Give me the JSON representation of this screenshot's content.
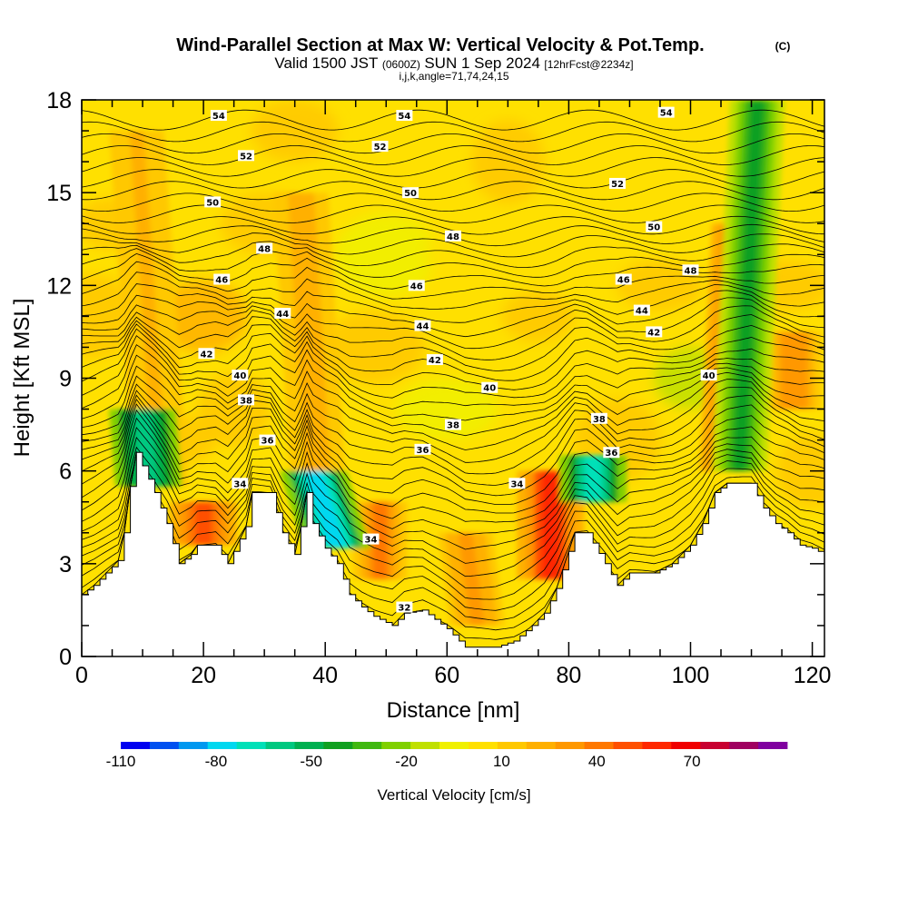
{
  "chart_data": {
    "type": "heatmap",
    "title_main": "Wind-Parallel Section at Max W: Vertical Velocity & Pot.Temp.",
    "title_mark": "(C)",
    "subtitle_a": "Valid 1500 JST",
    "subtitle_b": "(0600Z)",
    "subtitle_c": "SUN 1 Sep 2024",
    "subtitle_d": "[12hrFcst@2234z]",
    "subtitle2": "i,j,k,angle=71,74,24,15",
    "xlabel": "Distance [nm]",
    "ylabel": "Height [Kft MSL]",
    "xlim": [
      0,
      122
    ],
    "ylim": [
      0,
      18
    ],
    "x_ticks": [
      "0",
      "20",
      "40",
      "60",
      "80",
      "100",
      "120"
    ],
    "x_tick_values": [
      0,
      20,
      40,
      60,
      80,
      100,
      120
    ],
    "y_ticks": [
      "0",
      "3",
      "6",
      "9",
      "12",
      "15",
      "18"
    ],
    "y_tick_values": [
      0,
      3,
      6,
      9,
      12,
      15,
      18
    ],
    "colorbar": {
      "label": "Vertical Velocity [cm/s]",
      "tick_labels": [
        "-110",
        "-80",
        "-50",
        "-20",
        "10",
        "40",
        "70"
      ],
      "tick_values": [
        -110,
        -80,
        -50,
        -20,
        10,
        40,
        70
      ],
      "range": [
        -110,
        100
      ],
      "colors": [
        "#0000f0",
        "#0050f0",
        "#0098f0",
        "#00d8f0",
        "#00e0b8",
        "#00c880",
        "#00b050",
        "#10a020",
        "#40b810",
        "#80d000",
        "#c0e000",
        "#f0f000",
        "#ffe000",
        "#ffc800",
        "#ffb000",
        "#ff9800",
        "#ff7800",
        "#ff5000",
        "#ff2800",
        "#f00000",
        "#c80030",
        "#a00060",
        "#8000a0"
      ]
    },
    "terrain": [
      {
        "x": 0,
        "h": 2.0
      },
      {
        "x": 2,
        "h": 2.3
      },
      {
        "x": 4,
        "h": 2.7
      },
      {
        "x": 6,
        "h": 3.1
      },
      {
        "x": 7,
        "h": 4.0
      },
      {
        "x": 8,
        "h": 5.5
      },
      {
        "x": 9,
        "h": 6.6
      },
      {
        "x": 12,
        "h": 5.3
      },
      {
        "x": 14,
        "h": 4.3
      },
      {
        "x": 16,
        "h": 3.0
      },
      {
        "x": 18,
        "h": 3.3
      },
      {
        "x": 19,
        "h": 3.6
      },
      {
        "x": 22,
        "h": 3.6
      },
      {
        "x": 24,
        "h": 3.0
      },
      {
        "x": 27,
        "h": 4.2
      },
      {
        "x": 28,
        "h": 5.3
      },
      {
        "x": 31,
        "h": 5.3
      },
      {
        "x": 33,
        "h": 4.0
      },
      {
        "x": 35,
        "h": 3.3
      },
      {
        "x": 36,
        "h": 4.2
      },
      {
        "x": 37,
        "h": 5.3
      },
      {
        "x": 38,
        "h": 4.3
      },
      {
        "x": 40,
        "h": 3.5
      },
      {
        "x": 42,
        "h": 3.0
      },
      {
        "x": 44,
        "h": 2.0
      },
      {
        "x": 46,
        "h": 1.6
      },
      {
        "x": 48,
        "h": 1.3
      },
      {
        "x": 51,
        "h": 1.0
      },
      {
        "x": 53,
        "h": 1.4
      },
      {
        "x": 56,
        "h": 1.5
      },
      {
        "x": 60,
        "h": 0.9
      },
      {
        "x": 63,
        "h": 0.3
      },
      {
        "x": 68,
        "h": 0.3
      },
      {
        "x": 71,
        "h": 0.5
      },
      {
        "x": 74,
        "h": 1.0
      },
      {
        "x": 76,
        "h": 1.4
      },
      {
        "x": 78,
        "h": 2.2
      },
      {
        "x": 80,
        "h": 3.4
      },
      {
        "x": 81,
        "h": 4.0
      },
      {
        "x": 83,
        "h": 4.0
      },
      {
        "x": 86,
        "h": 3.0
      },
      {
        "x": 88,
        "h": 2.3
      },
      {
        "x": 90,
        "h": 2.7
      },
      {
        "x": 94,
        "h": 2.7
      },
      {
        "x": 97,
        "h": 3.0
      },
      {
        "x": 100,
        "h": 3.6
      },
      {
        "x": 102,
        "h": 4.3
      },
      {
        "x": 104,
        "h": 5.3
      },
      {
        "x": 106,
        "h": 5.6
      },
      {
        "x": 110,
        "h": 5.6
      },
      {
        "x": 112,
        "h": 4.8
      },
      {
        "x": 114,
        "h": 4.3
      },
      {
        "x": 116,
        "h": 4.0
      },
      {
        "x": 118,
        "h": 3.6
      },
      {
        "x": 120,
        "h": 3.5
      },
      {
        "x": 122,
        "h": 3.3
      }
    ],
    "updraft_bands": [
      {
        "x_bottom": 13,
        "h_bottom": 5.5,
        "x_top": 9,
        "h_top": 17.0,
        "w": 18
      },
      {
        "x_bottom": 20,
        "h_bottom": 3.6,
        "x_top": 20,
        "h_top": 5.0,
        "w": 50
      },
      {
        "x_bottom": 39,
        "h_bottom": 5.0,
        "x_top": 36,
        "h_top": 15.0,
        "w": 22
      },
      {
        "x_bottom": 49,
        "h_bottom": 2.5,
        "x_top": 49,
        "h_top": 5.0,
        "w": 40
      },
      {
        "x_bottom": 65,
        "h_bottom": 1.0,
        "x_top": 63,
        "h_top": 4.0,
        "w": 30
      },
      {
        "x_bottom": 77,
        "h_bottom": 2.5,
        "x_top": 77,
        "h_top": 6.0,
        "w": 55
      },
      {
        "x_bottom": 106,
        "h_bottom": 6.0,
        "x_top": 108,
        "h_top": 14.0,
        "w": 45
      },
      {
        "x_bottom": 117,
        "h_bottom": 8.0,
        "x_top": 117,
        "h_top": 10.5,
        "w": 35
      }
    ],
    "downdraft_bands": [
      {
        "x_bottom": 11,
        "h_bottom": 5.5,
        "x_top": 10,
        "h_top": 8.0,
        "w": -60
      },
      {
        "x_bottom": 42,
        "h_bottom": 3.5,
        "x_top": 38,
        "h_top": 6.0,
        "w": -80
      },
      {
        "x_bottom": 84,
        "h_bottom": 5.0,
        "x_top": 84,
        "h_top": 6.5,
        "w": -70
      },
      {
        "x_bottom": 108,
        "h_bottom": 6.0,
        "x_top": 111,
        "h_top": 18.0,
        "w": -40
      }
    ],
    "contour_labels": [
      {
        "text": "54",
        "x": 22.5,
        "h": 17.5
      },
      {
        "text": "54",
        "x": 53,
        "h": 17.5
      },
      {
        "text": "54",
        "x": 96,
        "h": 17.6
      },
      {
        "text": "52",
        "x": 27,
        "h": 16.2
      },
      {
        "text": "52",
        "x": 49,
        "h": 16.5
      },
      {
        "text": "52",
        "x": 88,
        "h": 15.3
      },
      {
        "text": "50",
        "x": 21.5,
        "h": 14.7
      },
      {
        "text": "50",
        "x": 54,
        "h": 15.0
      },
      {
        "text": "50",
        "x": 94,
        "h": 13.9
      },
      {
        "text": "48",
        "x": 30,
        "h": 13.2
      },
      {
        "text": "48",
        "x": 61,
        "h": 13.6
      },
      {
        "text": "48",
        "x": 100,
        "h": 12.5
      },
      {
        "text": "46",
        "x": 23,
        "h": 12.2
      },
      {
        "text": "46",
        "x": 55,
        "h": 12.0
      },
      {
        "text": "46",
        "x": 89,
        "h": 12.2
      },
      {
        "text": "44",
        "x": 33,
        "h": 11.1
      },
      {
        "text": "44",
        "x": 56,
        "h": 10.7
      },
      {
        "text": "44",
        "x": 92,
        "h": 11.2
      },
      {
        "text": "42",
        "x": 20.5,
        "h": 9.8
      },
      {
        "text": "42",
        "x": 58,
        "h": 9.6
      },
      {
        "text": "42",
        "x": 94,
        "h": 10.5
      },
      {
        "text": "40",
        "x": 26,
        "h": 9.1
      },
      {
        "text": "40",
        "x": 67,
        "h": 8.7
      },
      {
        "text": "40",
        "x": 103,
        "h": 9.1
      },
      {
        "text": "38",
        "x": 27,
        "h": 8.3
      },
      {
        "text": "38",
        "x": 61,
        "h": 7.5
      },
      {
        "text": "38",
        "x": 85,
        "h": 7.7
      },
      {
        "text": "36",
        "x": 30.5,
        "h": 7.0
      },
      {
        "text": "36",
        "x": 56,
        "h": 6.7
      },
      {
        "text": "36",
        "x": 87,
        "h": 6.6
      },
      {
        "text": "34",
        "x": 26,
        "h": 5.6
      },
      {
        "text": "34",
        "x": 71.5,
        "h": 5.6
      },
      {
        "text": "34",
        "x": 47.5,
        "h": 3.8
      },
      {
        "text": "32",
        "x": 53,
        "h": 1.6
      }
    ]
  }
}
